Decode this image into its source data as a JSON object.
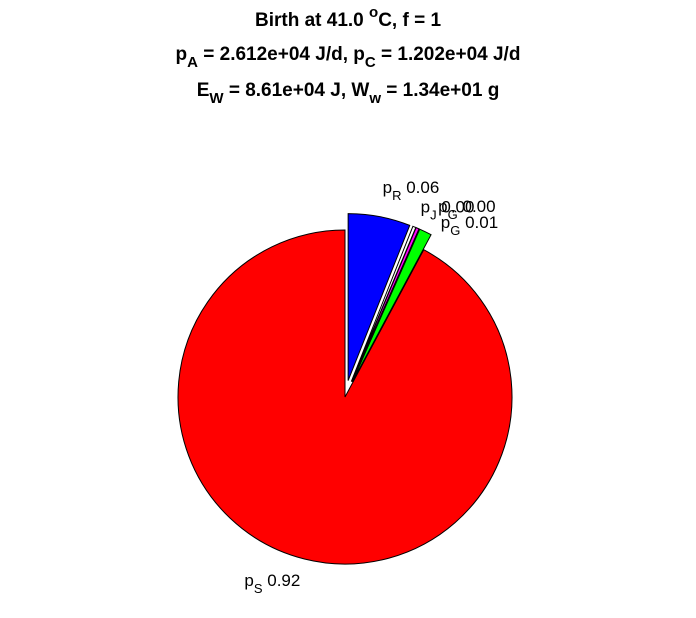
{
  "chart_data": {
    "type": "pie",
    "title_lines": [
      [
        {
          "text": "Birth at 41.0 "
        },
        {
          "text": "o",
          "sup": true
        },
        {
          "text": "C, f = 1"
        }
      ],
      [
        {
          "text": "p"
        },
        {
          "text": "A",
          "sub": true
        },
        {
          "text": " = 2.612e+04 J/d, p"
        },
        {
          "text": "C",
          "sub": true
        },
        {
          "text": " = 1.202e+04 J/d"
        }
      ],
      [
        {
          "text": "E"
        },
        {
          "text": "W",
          "sub": true
        },
        {
          "text": " = 8.61e+04 J, W"
        },
        {
          "text": "w",
          "sub": true
        },
        {
          "text": " = 1.34e+01 g"
        }
      ]
    ],
    "slices": [
      {
        "name": "p",
        "subscript": "R",
        "value": 0.06,
        "value_label": "0.06",
        "color": "#0000ff",
        "explode": true
      },
      {
        "name": "p",
        "subscript": "J",
        "value": 0.003,
        "value_label": "0.00",
        "color": "#ffffff",
        "explode": true
      },
      {
        "name": "p",
        "subscript": "G",
        "value": 0.003,
        "value_label": "0.00",
        "color": "#ff00ff",
        "explode": true
      },
      {
        "name": "p",
        "subscript": "G",
        "value": 0.012,
        "value_label": "0.01",
        "color": "#00ff00",
        "explode": true
      },
      {
        "name": "p",
        "subscript": "S",
        "value": 0.92,
        "value_label": "0.92",
        "color": "#ff0000",
        "explode": false
      }
    ]
  }
}
